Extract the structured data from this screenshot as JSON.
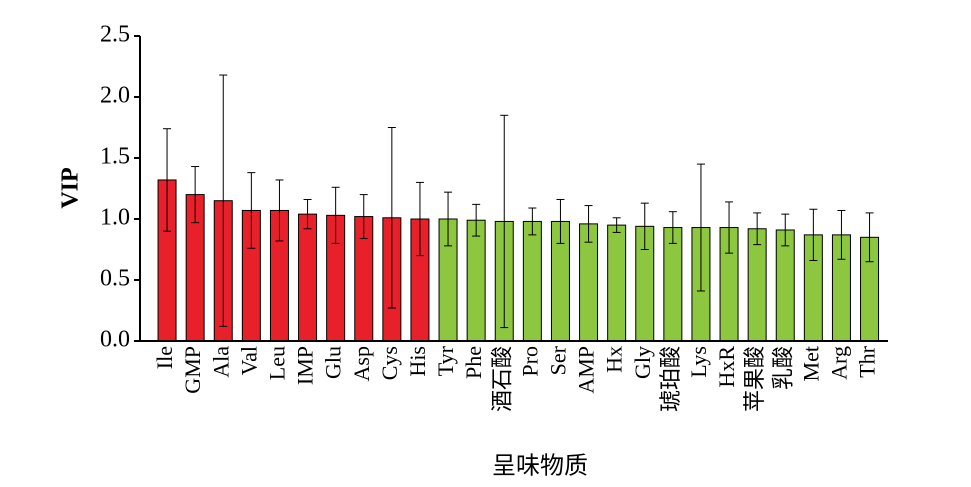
{
  "chart_data": {
    "type": "bar",
    "x_label": "呈味物质",
    "y_label": "VIP",
    "categories": [
      "Ile",
      "GMP",
      "Ala",
      "Val",
      "Leu",
      "IMP",
      "Glu",
      "Asp",
      "Cys",
      "His",
      "Tyr",
      "Phe",
      "酒石酸",
      "Pro",
      "Ser",
      "AMP",
      "Hx",
      "Gly",
      "琥珀酸",
      "Lys",
      "HxR",
      "苹果酸",
      "乳酸",
      "Met",
      "Arg",
      "Thr"
    ],
    "values": [
      1.32,
      1.2,
      1.15,
      1.07,
      1.07,
      1.04,
      1.03,
      1.02,
      1.01,
      1.0,
      1.0,
      0.99,
      0.98,
      0.98,
      0.98,
      0.96,
      0.95,
      0.94,
      0.93,
      0.93,
      0.93,
      0.92,
      0.91,
      0.87,
      0.87,
      0.85
    ],
    "errors": [
      0.42,
      0.23,
      1.03,
      0.31,
      0.25,
      0.12,
      0.23,
      0.18,
      0.74,
      0.3,
      0.22,
      0.13,
      0.87,
      0.11,
      0.18,
      0.15,
      0.06,
      0.19,
      0.13,
      0.52,
      0.21,
      0.13,
      0.13,
      0.21,
      0.2,
      0.2
    ],
    "colors": [
      "#e8202a",
      "#e8202a",
      "#e8202a",
      "#e8202a",
      "#e8202a",
      "#e8202a",
      "#e8202a",
      "#e8202a",
      "#e8202a",
      "#e8202a",
      "#8dc63f",
      "#8dc63f",
      "#8dc63f",
      "#8dc63f",
      "#8dc63f",
      "#8dc63f",
      "#8dc63f",
      "#8dc63f",
      "#8dc63f",
      "#8dc63f",
      "#8dc63f",
      "#8dc63f",
      "#8dc63f",
      "#8dc63f",
      "#8dc63f",
      "#8dc63f"
    ],
    "ylim": [
      0,
      2.5
    ],
    "yticks": [
      {
        "value": 0,
        "label": "0.0"
      },
      0.5,
      {
        "value": 1,
        "label": "1.0"
      },
      1.5,
      {
        "value": 2,
        "label": "2.0"
      },
      2.5
    ]
  }
}
